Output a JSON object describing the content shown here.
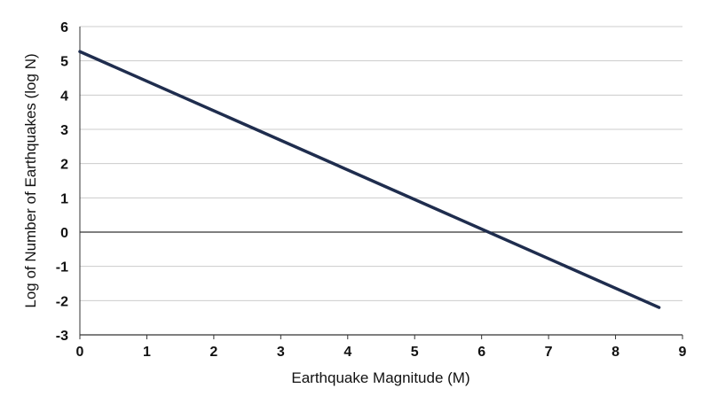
{
  "chart_data": {
    "type": "line",
    "xlabel": "Earthquake Magnitude (M)",
    "ylabel": "Log of Number of Earthquakes (log N)",
    "xlim": [
      0,
      9
    ],
    "ylim": [
      -3,
      6
    ],
    "x_ticks": [
      "0",
      "1",
      "2",
      "3",
      "4",
      "5",
      "6",
      "7",
      "8",
      "9"
    ],
    "y_ticks": [
      "6",
      "5",
      "4",
      "3",
      "2",
      "1",
      "0",
      "-1",
      "-2",
      "-3"
    ],
    "grid": true,
    "series": [
      {
        "x": [
          0,
          8.65
        ],
        "y": [
          5.27,
          -2.2
        ]
      }
    ],
    "colors": {
      "line": "#1f2d4e",
      "grid": "#cccccc",
      "zero_line": "#333333"
    }
  }
}
